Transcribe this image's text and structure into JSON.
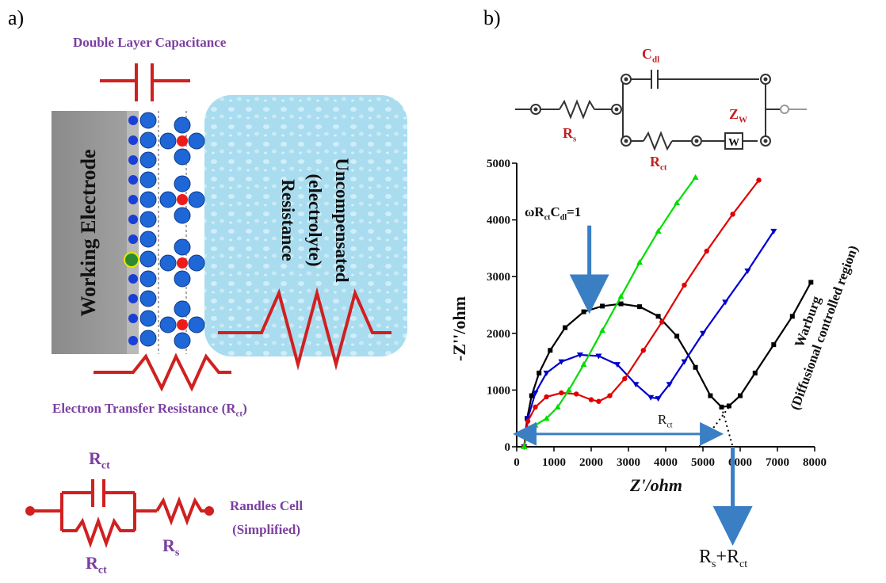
{
  "panel_a": {
    "label": "a)",
    "double_layer_title": "Double Layer Capacitance",
    "working_electrode": "Working Electrode",
    "electrolyte_line1": "Uncompensated",
    "electrolyte_line2": "(electrolyte)",
    "electrolyte_line3": "Resistance",
    "electron_transfer_main": "Electron Transfer  Resistance (R",
    "electron_transfer_sub": "ct",
    "electron_transfer_close": ")",
    "randles_line1": "Randles Cell",
    "randles_line2": "(Simplified)",
    "rct_top_main": "R",
    "rct_top_sub": "ct",
    "rct_bottom_main": "R",
    "rct_bottom_sub": "ct",
    "rs_main": "R",
    "rs_sub": "s"
  },
  "panel_b": {
    "label": "b)",
    "circuit": {
      "cdl_main": "C",
      "cdl_sub": "dl",
      "rs_main": "R",
      "rs_sub": "s",
      "rct_main": "R",
      "rct_sub": "ct",
      "zw_main": "Z",
      "zw_sub": "W",
      "w_box": "W"
    },
    "omega_main": "ωR",
    "omega_sub1": "ct",
    "omega_mid": "C",
    "omega_sub2": "dl",
    "omega_end": "=1",
    "rct_arrow_main": "R",
    "rct_arrow_sub": "ct",
    "warburg_line1": "Warburg",
    "warburg_line2": "(Diffusional controlled region)",
    "rs_rct_main": "R",
    "rs_rct_sub1": "s",
    "rs_rct_plus": "+R",
    "rs_rct_sub2": "ct"
  },
  "chart_data": {
    "type": "scatter",
    "xlabel": "Z'/ohm",
    "ylabel": "-Z''/ohm",
    "xlim": [
      0,
      8000
    ],
    "ylim": [
      0,
      5000
    ],
    "xticks": [
      "0",
      "1000",
      "2000",
      "3000",
      "4000",
      "5000",
      "6000",
      "7000",
      "8000"
    ],
    "yticks": [
      "0",
      "1000",
      "2000",
      "3000",
      "4000",
      "5000"
    ],
    "grid": false,
    "series": [
      {
        "color": "#000000",
        "marker": "square",
        "points": [
          [
            200,
            0
          ],
          [
            280,
            500
          ],
          [
            400,
            900
          ],
          [
            600,
            1300
          ],
          [
            900,
            1700
          ],
          [
            1300,
            2100
          ],
          [
            1800,
            2380
          ],
          [
            2300,
            2480
          ],
          [
            2800,
            2520
          ],
          [
            3300,
            2470
          ],
          [
            3800,
            2300
          ],
          [
            4300,
            1950
          ],
          [
            4800,
            1400
          ],
          [
            5200,
            900
          ],
          [
            5500,
            700
          ],
          [
            5700,
            720
          ],
          [
            6000,
            900
          ],
          [
            6400,
            1300
          ],
          [
            6900,
            1800
          ],
          [
            7400,
            2300
          ],
          [
            7900,
            2900
          ]
        ]
      },
      {
        "color": "#0000cc",
        "marker": "triangle-down",
        "points": [
          [
            200,
            0
          ],
          [
            300,
            500
          ],
          [
            500,
            950
          ],
          [
            800,
            1300
          ],
          [
            1200,
            1500
          ],
          [
            1700,
            1620
          ],
          [
            2200,
            1600
          ],
          [
            2700,
            1450
          ],
          [
            3200,
            1100
          ],
          [
            3600,
            870
          ],
          [
            3800,
            850
          ],
          [
            4100,
            1100
          ],
          [
            4500,
            1500
          ],
          [
            5000,
            2000
          ],
          [
            5600,
            2550
          ],
          [
            6200,
            3100
          ],
          [
            6900,
            3800
          ]
        ]
      },
      {
        "color": "#e00000",
        "marker": "circle",
        "points": [
          [
            200,
            0
          ],
          [
            300,
            450
          ],
          [
            500,
            700
          ],
          [
            800,
            880
          ],
          [
            1200,
            950
          ],
          [
            1600,
            930
          ],
          [
            2000,
            830
          ],
          [
            2200,
            800
          ],
          [
            2500,
            900
          ],
          [
            2900,
            1200
          ],
          [
            3400,
            1700
          ],
          [
            3900,
            2200
          ],
          [
            4500,
            2850
          ],
          [
            5100,
            3450
          ],
          [
            5800,
            4100
          ],
          [
            6500,
            4700
          ]
        ]
      },
      {
        "color": "#00dd00",
        "marker": "triangle-up",
        "points": [
          [
            200,
            0
          ],
          [
            300,
            250
          ],
          [
            500,
            380
          ],
          [
            800,
            500
          ],
          [
            1100,
            700
          ],
          [
            1400,
            1000
          ],
          [
            1800,
            1450
          ],
          [
            2300,
            2050
          ],
          [
            2800,
            2650
          ],
          [
            3300,
            3250
          ],
          [
            3800,
            3800
          ],
          [
            4300,
            4300
          ],
          [
            4800,
            4750
          ]
        ]
      }
    ]
  }
}
